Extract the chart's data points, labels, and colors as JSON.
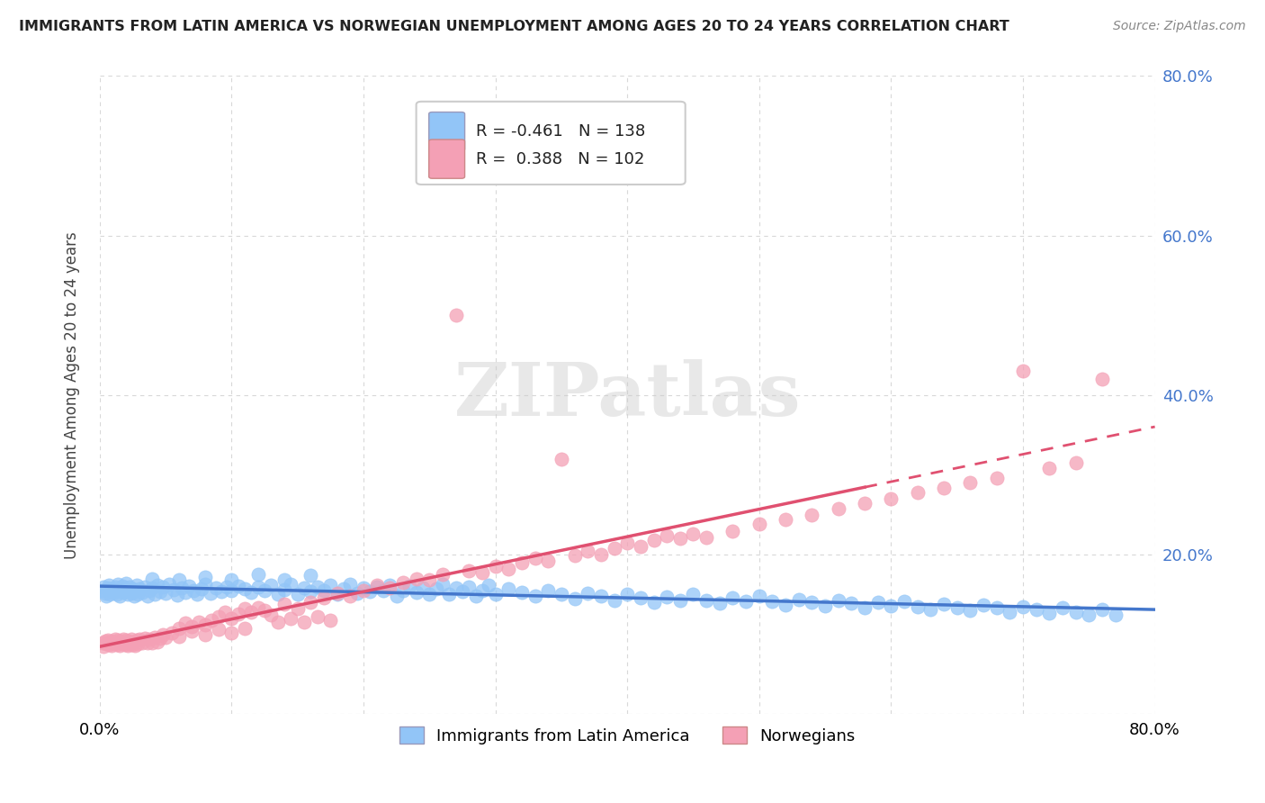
{
  "title": "IMMIGRANTS FROM LATIN AMERICA VS NORWEGIAN UNEMPLOYMENT AMONG AGES 20 TO 24 YEARS CORRELATION CHART",
  "source": "Source: ZipAtlas.com",
  "ylabel": "Unemployment Among Ages 20 to 24 years",
  "xlim": [
    0.0,
    0.8
  ],
  "ylim": [
    0.0,
    0.8
  ],
  "series1_color": "#92c5f7",
  "series1_line_color": "#4477cc",
  "series2_color": "#f4a0b5",
  "series2_line_color": "#e05070",
  "series1_R": -0.461,
  "series1_N": 138,
  "series2_R": 0.388,
  "series2_N": 102,
  "legend_label1": "Immigrants from Latin America",
  "legend_label2": "Norwegians",
  "watermark": "ZIPatlas",
  "grid_color": "#d8d8d8",
  "background_color": "#ffffff",
  "right_tick_color": "#4477cc",
  "series1_points": [
    [
      0.002,
      0.155
    ],
    [
      0.003,
      0.16
    ],
    [
      0.004,
      0.152
    ],
    [
      0.005,
      0.148
    ],
    [
      0.006,
      0.158
    ],
    [
      0.007,
      0.162
    ],
    [
      0.008,
      0.15
    ],
    [
      0.009,
      0.155
    ],
    [
      0.01,
      0.157
    ],
    [
      0.011,
      0.153
    ],
    [
      0.012,
      0.159
    ],
    [
      0.013,
      0.151
    ],
    [
      0.014,
      0.163
    ],
    [
      0.015,
      0.148
    ],
    [
      0.016,
      0.156
    ],
    [
      0.017,
      0.161
    ],
    [
      0.018,
      0.153
    ],
    [
      0.019,
      0.158
    ],
    [
      0.02,
      0.164
    ],
    [
      0.021,
      0.15
    ],
    [
      0.022,
      0.155
    ],
    [
      0.023,
      0.16
    ],
    [
      0.024,
      0.152
    ],
    [
      0.025,
      0.157
    ],
    [
      0.026,
      0.148
    ],
    [
      0.027,
      0.155
    ],
    [
      0.028,
      0.162
    ],
    [
      0.029,
      0.15
    ],
    [
      0.03,
      0.157
    ],
    [
      0.032,
      0.153
    ],
    [
      0.034,
      0.16
    ],
    [
      0.036,
      0.148
    ],
    [
      0.038,
      0.155
    ],
    [
      0.04,
      0.158
    ],
    [
      0.042,
      0.151
    ],
    [
      0.044,
      0.162
    ],
    [
      0.046,
      0.154
    ],
    [
      0.048,
      0.159
    ],
    [
      0.05,
      0.152
    ],
    [
      0.053,
      0.163
    ],
    [
      0.056,
      0.156
    ],
    [
      0.059,
      0.149
    ],
    [
      0.062,
      0.158
    ],
    [
      0.065,
      0.153
    ],
    [
      0.068,
      0.161
    ],
    [
      0.071,
      0.155
    ],
    [
      0.074,
      0.15
    ],
    [
      0.077,
      0.157
    ],
    [
      0.08,
      0.163
    ],
    [
      0.084,
      0.152
    ],
    [
      0.088,
      0.158
    ],
    [
      0.092,
      0.154
    ],
    [
      0.096,
      0.16
    ],
    [
      0.1,
      0.155
    ],
    [
      0.105,
      0.161
    ],
    [
      0.11,
      0.157
    ],
    [
      0.115,
      0.153
    ],
    [
      0.12,
      0.159
    ],
    [
      0.125,
      0.155
    ],
    [
      0.13,
      0.162
    ],
    [
      0.135,
      0.15
    ],
    [
      0.14,
      0.156
    ],
    [
      0.145,
      0.163
    ],
    [
      0.15,
      0.151
    ],
    [
      0.155,
      0.158
    ],
    [
      0.16,
      0.154
    ],
    [
      0.165,
      0.16
    ],
    [
      0.17,
      0.155
    ],
    [
      0.175,
      0.162
    ],
    [
      0.18,
      0.15
    ],
    [
      0.185,
      0.157
    ],
    [
      0.19,
      0.163
    ],
    [
      0.195,
      0.152
    ],
    [
      0.2,
      0.158
    ],
    [
      0.205,
      0.154
    ],
    [
      0.21,
      0.16
    ],
    [
      0.215,
      0.155
    ],
    [
      0.22,
      0.162
    ],
    [
      0.225,
      0.148
    ],
    [
      0.23,
      0.155
    ],
    [
      0.235,
      0.161
    ],
    [
      0.24,
      0.153
    ],
    [
      0.245,
      0.158
    ],
    [
      0.25,
      0.15
    ],
    [
      0.255,
      0.157
    ],
    [
      0.26,
      0.163
    ],
    [
      0.265,
      0.151
    ],
    [
      0.27,
      0.158
    ],
    [
      0.275,
      0.154
    ],
    [
      0.28,
      0.16
    ],
    [
      0.285,
      0.148
    ],
    [
      0.29,
      0.155
    ],
    [
      0.295,
      0.162
    ],
    [
      0.3,
      0.15
    ],
    [
      0.31,
      0.157
    ],
    [
      0.32,
      0.153
    ],
    [
      0.33,
      0.148
    ],
    [
      0.34,
      0.155
    ],
    [
      0.35,
      0.151
    ],
    [
      0.36,
      0.145
    ],
    [
      0.37,
      0.152
    ],
    [
      0.38,
      0.148
    ],
    [
      0.39,
      0.143
    ],
    [
      0.4,
      0.15
    ],
    [
      0.41,
      0.146
    ],
    [
      0.42,
      0.14
    ],
    [
      0.43,
      0.147
    ],
    [
      0.44,
      0.143
    ],
    [
      0.45,
      0.15
    ],
    [
      0.46,
      0.143
    ],
    [
      0.47,
      0.139
    ],
    [
      0.48,
      0.146
    ],
    [
      0.49,
      0.142
    ],
    [
      0.5,
      0.148
    ],
    [
      0.51,
      0.141
    ],
    [
      0.52,
      0.137
    ],
    [
      0.53,
      0.144
    ],
    [
      0.54,
      0.14
    ],
    [
      0.55,
      0.136
    ],
    [
      0.56,
      0.143
    ],
    [
      0.57,
      0.139
    ],
    [
      0.58,
      0.133
    ],
    [
      0.59,
      0.14
    ],
    [
      0.6,
      0.136
    ],
    [
      0.61,
      0.142
    ],
    [
      0.62,
      0.135
    ],
    [
      0.63,
      0.131
    ],
    [
      0.64,
      0.138
    ],
    [
      0.65,
      0.134
    ],
    [
      0.66,
      0.13
    ],
    [
      0.67,
      0.137
    ],
    [
      0.68,
      0.133
    ],
    [
      0.69,
      0.128
    ],
    [
      0.7,
      0.135
    ],
    [
      0.71,
      0.131
    ],
    [
      0.72,
      0.127
    ],
    [
      0.73,
      0.134
    ],
    [
      0.74,
      0.128
    ],
    [
      0.75,
      0.124
    ],
    [
      0.76,
      0.131
    ],
    [
      0.77,
      0.125
    ],
    [
      0.04,
      0.17
    ],
    [
      0.06,
      0.168
    ],
    [
      0.08,
      0.172
    ],
    [
      0.1,
      0.169
    ],
    [
      0.12,
      0.175
    ],
    [
      0.14,
      0.168
    ],
    [
      0.16,
      0.174
    ]
  ],
  "series2_points": [
    [
      0.002,
      0.09
    ],
    [
      0.003,
      0.085
    ],
    [
      0.004,
      0.092
    ],
    [
      0.005,
      0.088
    ],
    [
      0.006,
      0.093
    ],
    [
      0.007,
      0.087
    ],
    [
      0.008,
      0.091
    ],
    [
      0.009,
      0.086
    ],
    [
      0.01,
      0.092
    ],
    [
      0.011,
      0.088
    ],
    [
      0.012,
      0.094
    ],
    [
      0.013,
      0.087
    ],
    [
      0.014,
      0.093
    ],
    [
      0.015,
      0.086
    ],
    [
      0.016,
      0.092
    ],
    [
      0.017,
      0.088
    ],
    [
      0.018,
      0.094
    ],
    [
      0.019,
      0.087
    ],
    [
      0.02,
      0.093
    ],
    [
      0.021,
      0.086
    ],
    [
      0.022,
      0.092
    ],
    [
      0.023,
      0.088
    ],
    [
      0.024,
      0.094
    ],
    [
      0.025,
      0.087
    ],
    [
      0.026,
      0.091
    ],
    [
      0.027,
      0.086
    ],
    [
      0.028,
      0.093
    ],
    [
      0.029,
      0.088
    ],
    [
      0.03,
      0.094
    ],
    [
      0.032,
      0.09
    ],
    [
      0.034,
      0.095
    ],
    [
      0.036,
      0.089
    ],
    [
      0.038,
      0.094
    ],
    [
      0.04,
      0.09
    ],
    [
      0.042,
      0.096
    ],
    [
      0.044,
      0.091
    ],
    [
      0.046,
      0.095
    ],
    [
      0.048,
      0.1
    ],
    [
      0.05,
      0.096
    ],
    [
      0.055,
      0.102
    ],
    [
      0.06,
      0.108
    ],
    [
      0.065,
      0.114
    ],
    [
      0.07,
      0.11
    ],
    [
      0.075,
      0.116
    ],
    [
      0.08,
      0.112
    ],
    [
      0.085,
      0.118
    ],
    [
      0.09,
      0.122
    ],
    [
      0.095,
      0.128
    ],
    [
      0.1,
      0.12
    ],
    [
      0.105,
      0.126
    ],
    [
      0.11,
      0.132
    ],
    [
      0.115,
      0.128
    ],
    [
      0.12,
      0.134
    ],
    [
      0.125,
      0.13
    ],
    [
      0.13,
      0.125
    ],
    [
      0.14,
      0.138
    ],
    [
      0.15,
      0.132
    ],
    [
      0.16,
      0.14
    ],
    [
      0.17,
      0.146
    ],
    [
      0.18,
      0.152
    ],
    [
      0.19,
      0.148
    ],
    [
      0.2,
      0.155
    ],
    [
      0.21,
      0.162
    ],
    [
      0.22,
      0.158
    ],
    [
      0.23,
      0.165
    ],
    [
      0.24,
      0.17
    ],
    [
      0.25,
      0.168
    ],
    [
      0.26,
      0.175
    ],
    [
      0.27,
      0.5
    ],
    [
      0.28,
      0.18
    ],
    [
      0.29,
      0.178
    ],
    [
      0.3,
      0.185
    ],
    [
      0.31,
      0.182
    ],
    [
      0.32,
      0.19
    ],
    [
      0.33,
      0.196
    ],
    [
      0.34,
      0.192
    ],
    [
      0.35,
      0.32
    ],
    [
      0.36,
      0.199
    ],
    [
      0.37,
      0.205
    ],
    [
      0.38,
      0.2
    ],
    [
      0.39,
      0.208
    ],
    [
      0.4,
      0.215
    ],
    [
      0.41,
      0.21
    ],
    [
      0.42,
      0.218
    ],
    [
      0.43,
      0.224
    ],
    [
      0.44,
      0.22
    ],
    [
      0.45,
      0.226
    ],
    [
      0.46,
      0.222
    ],
    [
      0.48,
      0.23
    ],
    [
      0.5,
      0.238
    ],
    [
      0.52,
      0.244
    ],
    [
      0.54,
      0.25
    ],
    [
      0.56,
      0.258
    ],
    [
      0.58,
      0.264
    ],
    [
      0.6,
      0.27
    ],
    [
      0.62,
      0.278
    ],
    [
      0.64,
      0.284
    ],
    [
      0.66,
      0.29
    ],
    [
      0.68,
      0.296
    ],
    [
      0.7,
      0.43
    ],
    [
      0.72,
      0.308
    ],
    [
      0.74,
      0.315
    ],
    [
      0.76,
      0.42
    ],
    [
      0.135,
      0.115
    ],
    [
      0.145,
      0.12
    ],
    [
      0.155,
      0.115
    ],
    [
      0.165,
      0.122
    ],
    [
      0.175,
      0.118
    ],
    [
      0.06,
      0.098
    ],
    [
      0.07,
      0.104
    ],
    [
      0.08,
      0.1
    ],
    [
      0.09,
      0.106
    ],
    [
      0.1,
      0.102
    ],
    [
      0.11,
      0.108
    ]
  ],
  "series1_trend": [
    0.0,
    0.172,
    0.8,
    0.12
  ],
  "series2_trend_solid": [
    0.0,
    0.075,
    0.6,
    0.26
  ],
  "series2_trend_dashed": [
    0.6,
    0.26,
    0.8,
    0.34
  ]
}
